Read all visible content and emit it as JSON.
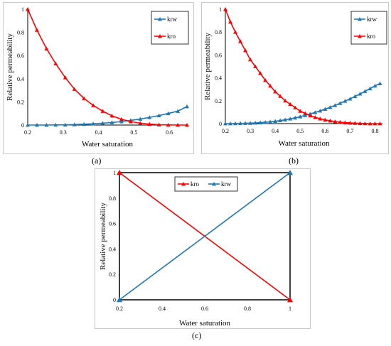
{
  "chart_data": [
    {
      "panel_label": "(a)",
      "type": "line",
      "xlabel": "Water saturation",
      "ylabel": "Relative permeability",
      "xlim": [
        0.2,
        0.65
      ],
      "ylim": [
        0,
        1
      ],
      "x_ticks": [
        "0.2",
        "0.3",
        "0.4",
        "0.5",
        "0.6"
      ],
      "y_ticks": [
        "0",
        "0.2",
        "0.4",
        "0.6",
        "0.8",
        "1"
      ],
      "legend_position": "top-right",
      "series": [
        {
          "name": "krw",
          "color": "#1f77b4",
          "marker": "triangle",
          "x": [
            0.2,
            0.226,
            0.253,
            0.279,
            0.306,
            0.332,
            0.359,
            0.385,
            0.412,
            0.438,
            0.465,
            0.491,
            0.518,
            0.544,
            0.571,
            0.597,
            0.624,
            0.65
          ],
          "y": [
            0.0,
            0.0,
            0.0,
            0.001,
            0.002,
            0.004,
            0.007,
            0.011,
            0.016,
            0.022,
            0.03,
            0.04,
            0.052,
            0.066,
            0.082,
            0.1,
            0.12,
            0.16
          ]
        },
        {
          "name": "kro",
          "color": "#ff0000",
          "marker": "triangle",
          "x": [
            0.2,
            0.226,
            0.253,
            0.279,
            0.306,
            0.332,
            0.359,
            0.385,
            0.412,
            0.438,
            0.465,
            0.491,
            0.518,
            0.544,
            0.571,
            0.597,
            0.624,
            0.65
          ],
          "y": [
            1.0,
            0.82,
            0.66,
            0.53,
            0.41,
            0.31,
            0.23,
            0.17,
            0.12,
            0.08,
            0.05,
            0.03,
            0.016,
            0.008,
            0.003,
            0.001,
            0.0,
            0.0
          ]
        }
      ]
    },
    {
      "panel_label": "(b)",
      "type": "line",
      "xlabel": "Water saturation",
      "ylabel": "Relative permeability",
      "xlim": [
        0.2,
        0.83
      ],
      "ylim": [
        0,
        1
      ],
      "x_ticks": [
        "0.2",
        "0.3",
        "0.4",
        "0.5",
        "0.6",
        "0.7",
        "0.8"
      ],
      "y_ticks": [
        "0",
        "0.2",
        "0.4",
        "0.6",
        "0.8",
        "1"
      ],
      "legend_position": "top-right",
      "series": [
        {
          "name": "krw",
          "color": "#1f77b4",
          "marker": "triangle",
          "x": [
            0.2,
            0.22,
            0.24,
            0.26,
            0.28,
            0.3,
            0.32,
            0.34,
            0.36,
            0.38,
            0.4,
            0.42,
            0.44,
            0.46,
            0.48,
            0.5,
            0.52,
            0.54,
            0.56,
            0.58,
            0.6,
            0.62,
            0.64,
            0.66,
            0.68,
            0.7,
            0.72,
            0.74,
            0.76,
            0.78,
            0.8,
            0.82
          ],
          "y": [
            0.0,
            0.0,
            0.001,
            0.002,
            0.003,
            0.004,
            0.006,
            0.009,
            0.012,
            0.016,
            0.021,
            0.027,
            0.034,
            0.042,
            0.051,
            0.061,
            0.072,
            0.085,
            0.098,
            0.112,
            0.127,
            0.143,
            0.16,
            0.178,
            0.197,
            0.217,
            0.238,
            0.26,
            0.283,
            0.306,
            0.33,
            0.35
          ]
        },
        {
          "name": "kro",
          "color": "#ff0000",
          "marker": "triangle",
          "x": [
            0.2,
            0.22,
            0.24,
            0.26,
            0.28,
            0.3,
            0.32,
            0.34,
            0.36,
            0.38,
            0.4,
            0.42,
            0.44,
            0.46,
            0.48,
            0.5,
            0.52,
            0.54,
            0.56,
            0.58,
            0.6,
            0.62,
            0.64,
            0.66,
            0.68,
            0.7,
            0.72,
            0.74,
            0.76,
            0.78,
            0.8,
            0.82
          ],
          "y": [
            1.0,
            0.89,
            0.8,
            0.72,
            0.64,
            0.56,
            0.5,
            0.44,
            0.38,
            0.33,
            0.28,
            0.24,
            0.2,
            0.17,
            0.14,
            0.11,
            0.09,
            0.07,
            0.055,
            0.043,
            0.033,
            0.025,
            0.018,
            0.013,
            0.009,
            0.006,
            0.004,
            0.002,
            0.001,
            0.0,
            0.0,
            0.0
          ]
        }
      ]
    },
    {
      "panel_label": "(c)",
      "type": "line",
      "xlabel": "Water saturation",
      "ylabel": "Relative permeability",
      "xlim": [
        0.2,
        1
      ],
      "ylim": [
        0,
        1
      ],
      "x_ticks": [
        "0.2",
        "0.4",
        "0.6",
        "0.8",
        "1"
      ],
      "y_ticks": [
        "0",
        "0.2",
        "0.4",
        "0.6",
        "0.8",
        "1"
      ],
      "legend_position": "top-center",
      "series": [
        {
          "name": "kro",
          "color": "#ff0000",
          "marker": "triangle",
          "x": [
            0.2,
            1
          ],
          "y": [
            1,
            0
          ]
        },
        {
          "name": "krw",
          "color": "#1f77b4",
          "marker": "triangle",
          "x": [
            0.2,
            1
          ],
          "y": [
            0,
            1
          ]
        }
      ]
    }
  ]
}
